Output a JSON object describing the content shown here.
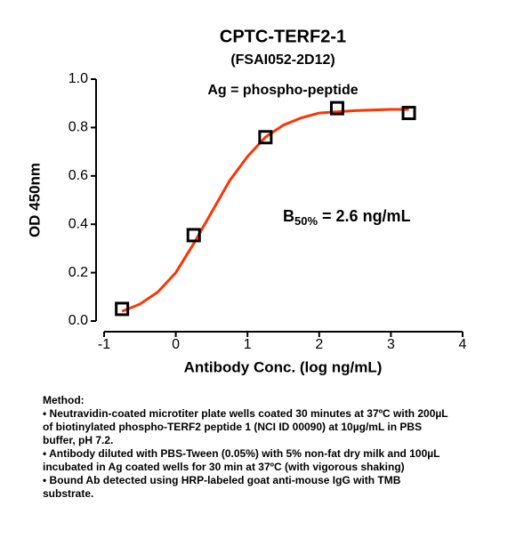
{
  "chart_data": {
    "type": "scatter",
    "title": "CPTC-TERF2-1",
    "subtitle": "(FSAI052-2D12)",
    "x_label": "Antibody Conc. (log ng/mL)",
    "y_label": "OD 450nm",
    "annotations": [
      "Ag = phospho-peptide"
    ],
    "b50": {
      "symbol": "B",
      "subscript": "50%",
      "text": " = 2.6 ng/mL"
    },
    "series": [
      {
        "color": "#000000",
        "x": [
          -0.75,
          0.25,
          1.25,
          2.25,
          3.25
        ],
        "values": [
          0.05,
          0.355,
          0.76,
          0.88,
          0.86
        ]
      },
      {
        "type": "line",
        "color": "#ff3300",
        "x": [
          -0.75,
          -0.5,
          -0.25,
          0,
          0.25,
          0.5,
          0.75,
          1.0,
          1.25,
          1.5,
          1.75,
          2.0,
          2.5,
          3.0,
          3.25
        ],
        "values": [
          0.04,
          0.07,
          0.12,
          0.2,
          0.32,
          0.45,
          0.58,
          0.68,
          0.76,
          0.81,
          0.84,
          0.86,
          0.87,
          0.875,
          0.875
        ]
      }
    ],
    "xlim": [
      -1,
      4
    ],
    "xticks": [
      -1,
      0,
      1,
      2,
      3,
      4
    ],
    "ylim": [
      0,
      1
    ],
    "yticks": [
      {
        "value": 0,
        "label": "0.0"
      },
      0.2,
      0.4,
      0.6,
      0.8,
      {
        "value": 1,
        "label": "1.0"
      }
    ],
    "method": {
      "heading": "Method:",
      "lines": [
        "• Neutravidin-coated microtiter plate wells coated 30 minutes at 37ºC  with 200µL",
        "of biotinylated phospho-TERF2 peptide 1 (NCI ID 00090) at 10µg/mL in PBS",
        "buffer, pH 7.2.",
        "• Antibody diluted with PBS-Tween (0.05%) with 5% non-fat dry milk and 100µL",
        "incubated in Ag coated wells for 30 min at 37ºC (with vigorous shaking)",
        "• Bound Ab detected using HRP-labeled goat anti-mouse IgG with TMB",
        "substrate."
      ]
    }
  }
}
